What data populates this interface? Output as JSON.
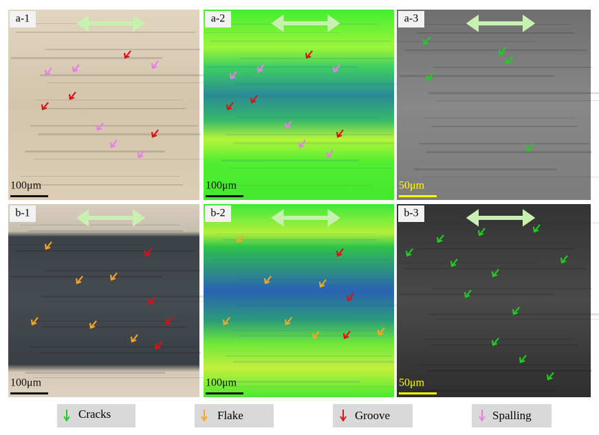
{
  "panels": [
    {
      "label": "a-1",
      "scale": "100μm"
    },
    {
      "label": "a-2",
      "scale": "100μm"
    },
    {
      "label": "a-3",
      "scale": "50μm"
    },
    {
      "label": "b-1",
      "scale": "100μm"
    },
    {
      "label": "b-2",
      "scale": "100μm"
    },
    {
      "label": "b-3",
      "scale": "50μm"
    }
  ],
  "legend": [
    {
      "label": "Cracks"
    },
    {
      "label": "Flake"
    },
    {
      "label": "Groove"
    },
    {
      "label": "Spalling"
    }
  ]
}
